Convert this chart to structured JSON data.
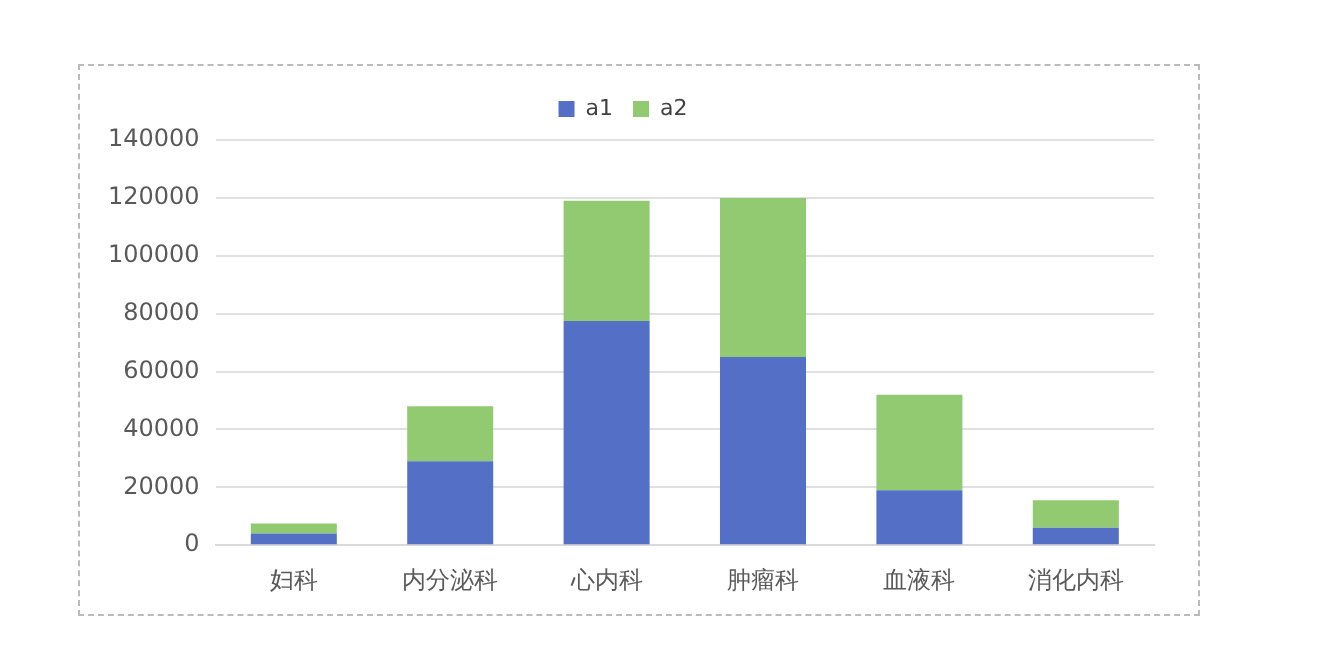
{
  "chart_data": {
    "type": "bar",
    "stacked": true,
    "categories": [
      "妇科",
      "内分泌科",
      "心内科",
      "肿瘤科",
      "血液科",
      "消化内科"
    ],
    "series": [
      {
        "name": "a1",
        "color": "#5470c6",
        "values": [
          4000,
          29000,
          77500,
          65000,
          19000,
          6000
        ]
      },
      {
        "name": "a2",
        "color": "#92ca72",
        "values": [
          3500,
          19000,
          41500,
          55000,
          33000,
          9500
        ]
      }
    ],
    "ylim": [
      0,
      140000
    ],
    "yticks": [
      0,
      20000,
      40000,
      60000,
      80000,
      100000,
      120000,
      140000
    ],
    "grid": "y",
    "legend": "top"
  }
}
